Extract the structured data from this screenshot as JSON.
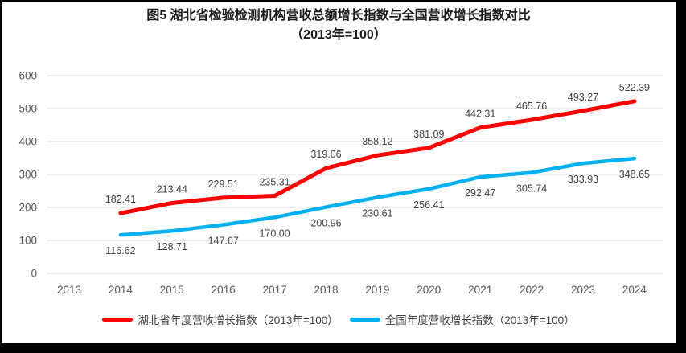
{
  "title": {
    "line1": "图5 湖北省检验检测机构营收总额增长指数与全国营收增长指数对比",
    "line2": "（2013年=100）"
  },
  "chart_data": {
    "type": "line",
    "categories": [
      "2013",
      "2014",
      "2015",
      "2016",
      "2017",
      "2018",
      "2019",
      "2020",
      "2021",
      "2022",
      "2023",
      "2024"
    ],
    "series": [
      {
        "name": "湖北省年度营收增长指数（2013年=100）",
        "color": "#FE0000",
        "label_position": "above",
        "values": [
          null,
          182.41,
          213.44,
          229.51,
          235.31,
          319.06,
          358.12,
          381.09,
          442.31,
          465.76,
          493.27,
          522.39
        ]
      },
      {
        "name": "全国年度营收增长指数（2013年=100）",
        "color": "#00B0F0",
        "label_position": "below",
        "values": [
          null,
          116.62,
          128.71,
          147.67,
          170.0,
          200.96,
          230.61,
          256.41,
          292.47,
          305.74,
          333.93,
          348.65
        ]
      }
    ],
    "ylim": [
      0,
      600
    ],
    "yticks": [
      0,
      100,
      200,
      300,
      400,
      500,
      600
    ],
    "grid": true,
    "legend_position": "bottom",
    "decimals": 2,
    "colors": {
      "gridline": "#D9D9D9",
      "axis_label": "#595959",
      "data_label": "#404040",
      "frame_border": "#000000"
    }
  }
}
